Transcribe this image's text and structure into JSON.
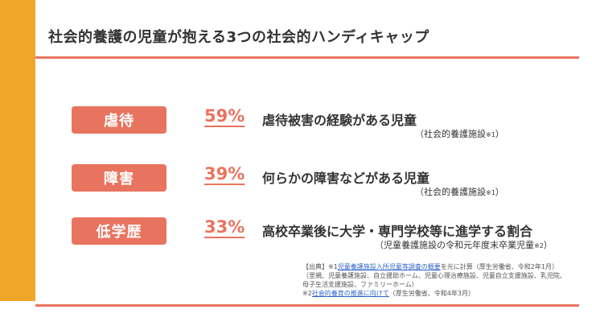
{
  "slide": {
    "title": "社会的養護の児童が抱える3つの社会的ハンディキャップ"
  },
  "colors": {
    "accent": "#e8745f",
    "side_bar": "#f0a628",
    "text": "#333333",
    "link": "#2f64c8"
  },
  "rows": [
    {
      "badge": "虐待",
      "percent": "59%",
      "description": "虐待被害の経験がある児童",
      "subnote": "（社会的養護施設",
      "subnote_mark": "※1",
      "subnote_close": "）"
    },
    {
      "badge": "障害",
      "percent": "39%",
      "description": "何らかの障害などがある児童",
      "subnote": "（社会的養護施設",
      "subnote_mark": "※1",
      "subnote_close": "）"
    },
    {
      "badge": "低学歴",
      "percent": "33%",
      "description": "高校卒業後に大学・専門学校等に進学する割合",
      "subnote": "（児童養護施設の令和元年度末卒業児童",
      "subnote_mark": "※2",
      "subnote_close": "）"
    }
  ],
  "source": {
    "line1_prefix": "【出典】※1",
    "line1_link": "児童養護施設入所児童等調査の概要",
    "line1_suffix": "を元に計算（厚生労働省、令和2年1月）",
    "line2": "（里親、児童養護施設、自立援助ホーム、児童心理治療施設、児童自立支援施設、乳児院、",
    "line3": "母子生活支援施設、ファミリーホーム）",
    "line4_prefix": "※2",
    "line4_link": "社会的養育の推進に向けて",
    "line4_suffix": "（厚生労働省、令和4年3月）"
  }
}
